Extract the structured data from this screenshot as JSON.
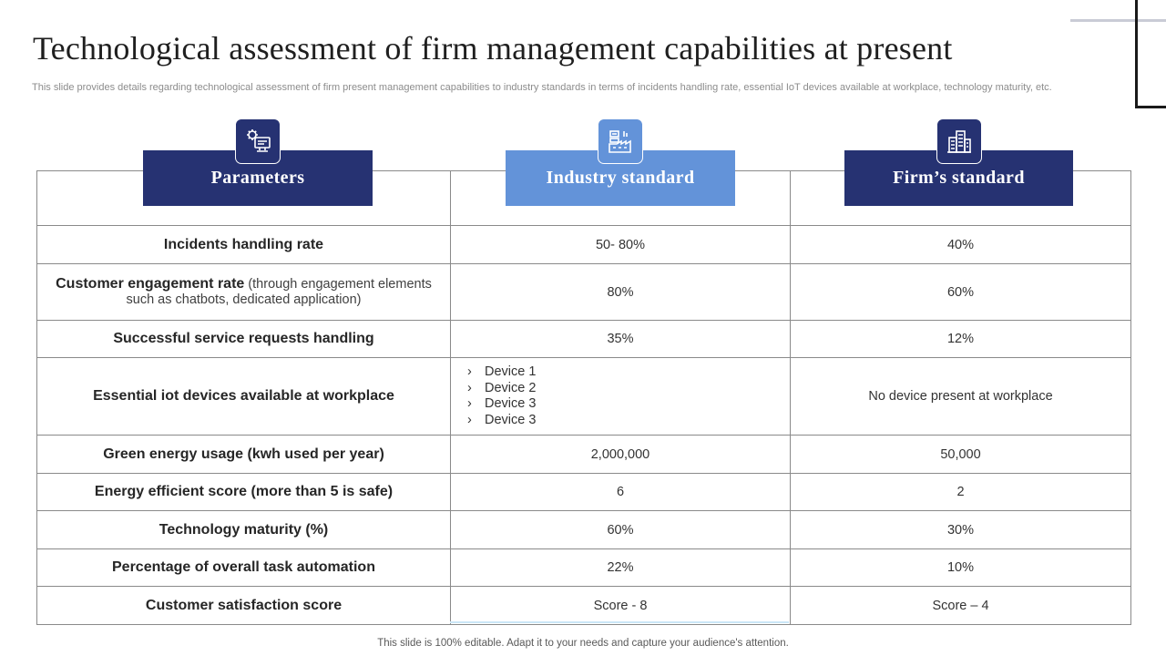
{
  "title": "Technological assessment of firm management capabilities at present",
  "subtitle": "This slide provides details regarding technological assessment of firm present management capabilities to industry standards in terms of incidents handling rate, essential IoT devices available at workplace, technology maturity, etc.",
  "columns": [
    {
      "label": "Parameters",
      "icon": "computer-settings-icon",
      "color": "#263272"
    },
    {
      "label": "Industry  standard",
      "icon": "factory-icon",
      "color": "#6393d9"
    },
    {
      "label": "Firm’s standard",
      "icon": "office-building-icon",
      "color": "#263272"
    }
  ],
  "rows": [
    {
      "param": "Incidents handling rate",
      "industry": "50- 80%",
      "firm": "40%"
    },
    {
      "param": "Customer engagement rate",
      "param_note": " (through engagement elements such as chatbots, dedicated application)",
      "industry": "80%",
      "firm": "60%"
    },
    {
      "param": "Successful service requests handling",
      "industry": "35%",
      "firm": "12%"
    },
    {
      "param": "Essential iot devices available at workplace",
      "industry_list": [
        "Device 1",
        "Device 2",
        "Device 3",
        "Device 3"
      ],
      "firm": "No device present at workplace"
    },
    {
      "param": "Green energy usage (kwh used per year)",
      "industry": "2,000,000",
      "firm": "50,000"
    },
    {
      "param": "Energy efficient score (more than 5 is safe)",
      "industry": "6",
      "firm": "2"
    },
    {
      "param": "Technology maturity (%)",
      "industry": "60%",
      "firm": "30%"
    },
    {
      "param": "Percentage of overall task automation",
      "industry": "22%",
      "firm": "10%"
    },
    {
      "param": "Customer satisfaction score",
      "industry": "Score - 8",
      "firm": "Score – 4"
    }
  ],
  "list_marker": "›",
  "footer": "This slide is 100% editable. Adapt it to your needs and capture your audience's attention."
}
